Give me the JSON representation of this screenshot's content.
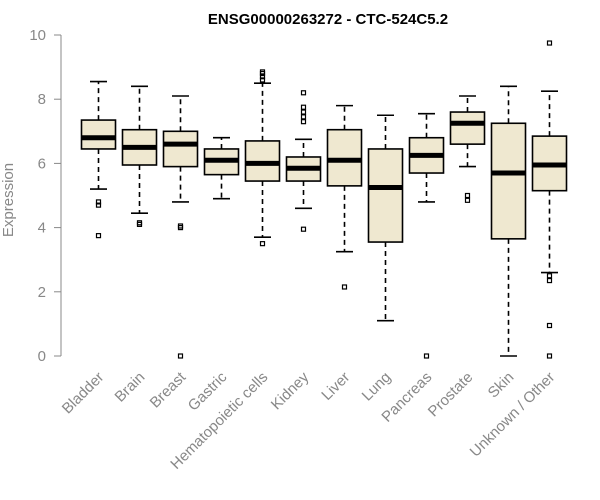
{
  "chart_data": {
    "type": "boxplot",
    "title": "ENSG00000263272 - CTC-524C5.2",
    "xlabel": "",
    "ylabel": "Expression",
    "ylim": [
      0,
      10
    ],
    "yticks": [
      0,
      2,
      4,
      6,
      8,
      10
    ],
    "box_fill": "#efe8d0",
    "series": [
      {
        "name": "Bladder",
        "whisker_low": 5.2,
        "q1": 6.45,
        "median": 6.8,
        "q3": 7.35,
        "whisker_high": 8.55,
        "outliers": [
          4.7,
          4.8,
          3.75
        ]
      },
      {
        "name": "Brain",
        "whisker_low": 4.45,
        "q1": 5.95,
        "median": 6.5,
        "q3": 7.05,
        "whisker_high": 8.4,
        "outliers": [
          4.1,
          4.15
        ]
      },
      {
        "name": "Breast",
        "whisker_low": 4.8,
        "q1": 5.9,
        "median": 6.6,
        "q3": 7.0,
        "whisker_high": 8.1,
        "outliers": [
          4.05,
          4.0,
          0.0
        ]
      },
      {
        "name": "Gastric",
        "whisker_low": 4.9,
        "q1": 5.65,
        "median": 6.1,
        "q3": 6.45,
        "whisker_high": 6.8,
        "outliers": []
      },
      {
        "name": "Hematopoietic cells",
        "whisker_low": 3.7,
        "q1": 5.45,
        "median": 6.0,
        "q3": 6.7,
        "whisker_high": 8.5,
        "outliers": [
          8.6,
          8.7,
          8.8,
          8.85,
          3.5
        ]
      },
      {
        "name": "Kidney",
        "whisker_low": 4.6,
        "q1": 5.45,
        "median": 5.85,
        "q3": 6.2,
        "whisker_high": 6.75,
        "outliers": [
          8.2,
          7.75,
          7.6,
          7.45,
          7.3,
          3.95
        ]
      },
      {
        "name": "Liver",
        "whisker_low": 3.25,
        "q1": 5.3,
        "median": 6.1,
        "q3": 7.05,
        "whisker_high": 7.8,
        "outliers": [
          2.15
        ]
      },
      {
        "name": "Lung",
        "whisker_low": 1.1,
        "q1": 3.55,
        "median": 5.25,
        "q3": 6.45,
        "whisker_high": 7.5,
        "outliers": []
      },
      {
        "name": "Pancreas",
        "whisker_low": 4.8,
        "q1": 5.7,
        "median": 6.25,
        "q3": 6.8,
        "whisker_high": 7.55,
        "outliers": [
          0.0
        ]
      },
      {
        "name": "Prostate",
        "whisker_low": 5.9,
        "q1": 6.6,
        "median": 7.25,
        "q3": 7.6,
        "whisker_high": 8.1,
        "outliers": [
          5.0,
          4.85
        ]
      },
      {
        "name": "Skin",
        "whisker_low": 0.0,
        "q1": 3.65,
        "median": 5.7,
        "q3": 7.25,
        "whisker_high": 8.4,
        "outliers": []
      },
      {
        "name": "Unknown / Other",
        "whisker_low": 2.6,
        "q1": 5.15,
        "median": 5.95,
        "q3": 6.85,
        "whisker_high": 8.25,
        "outliers": [
          9.75,
          2.5,
          2.35,
          0.95,
          0.0
        ]
      }
    ]
  }
}
